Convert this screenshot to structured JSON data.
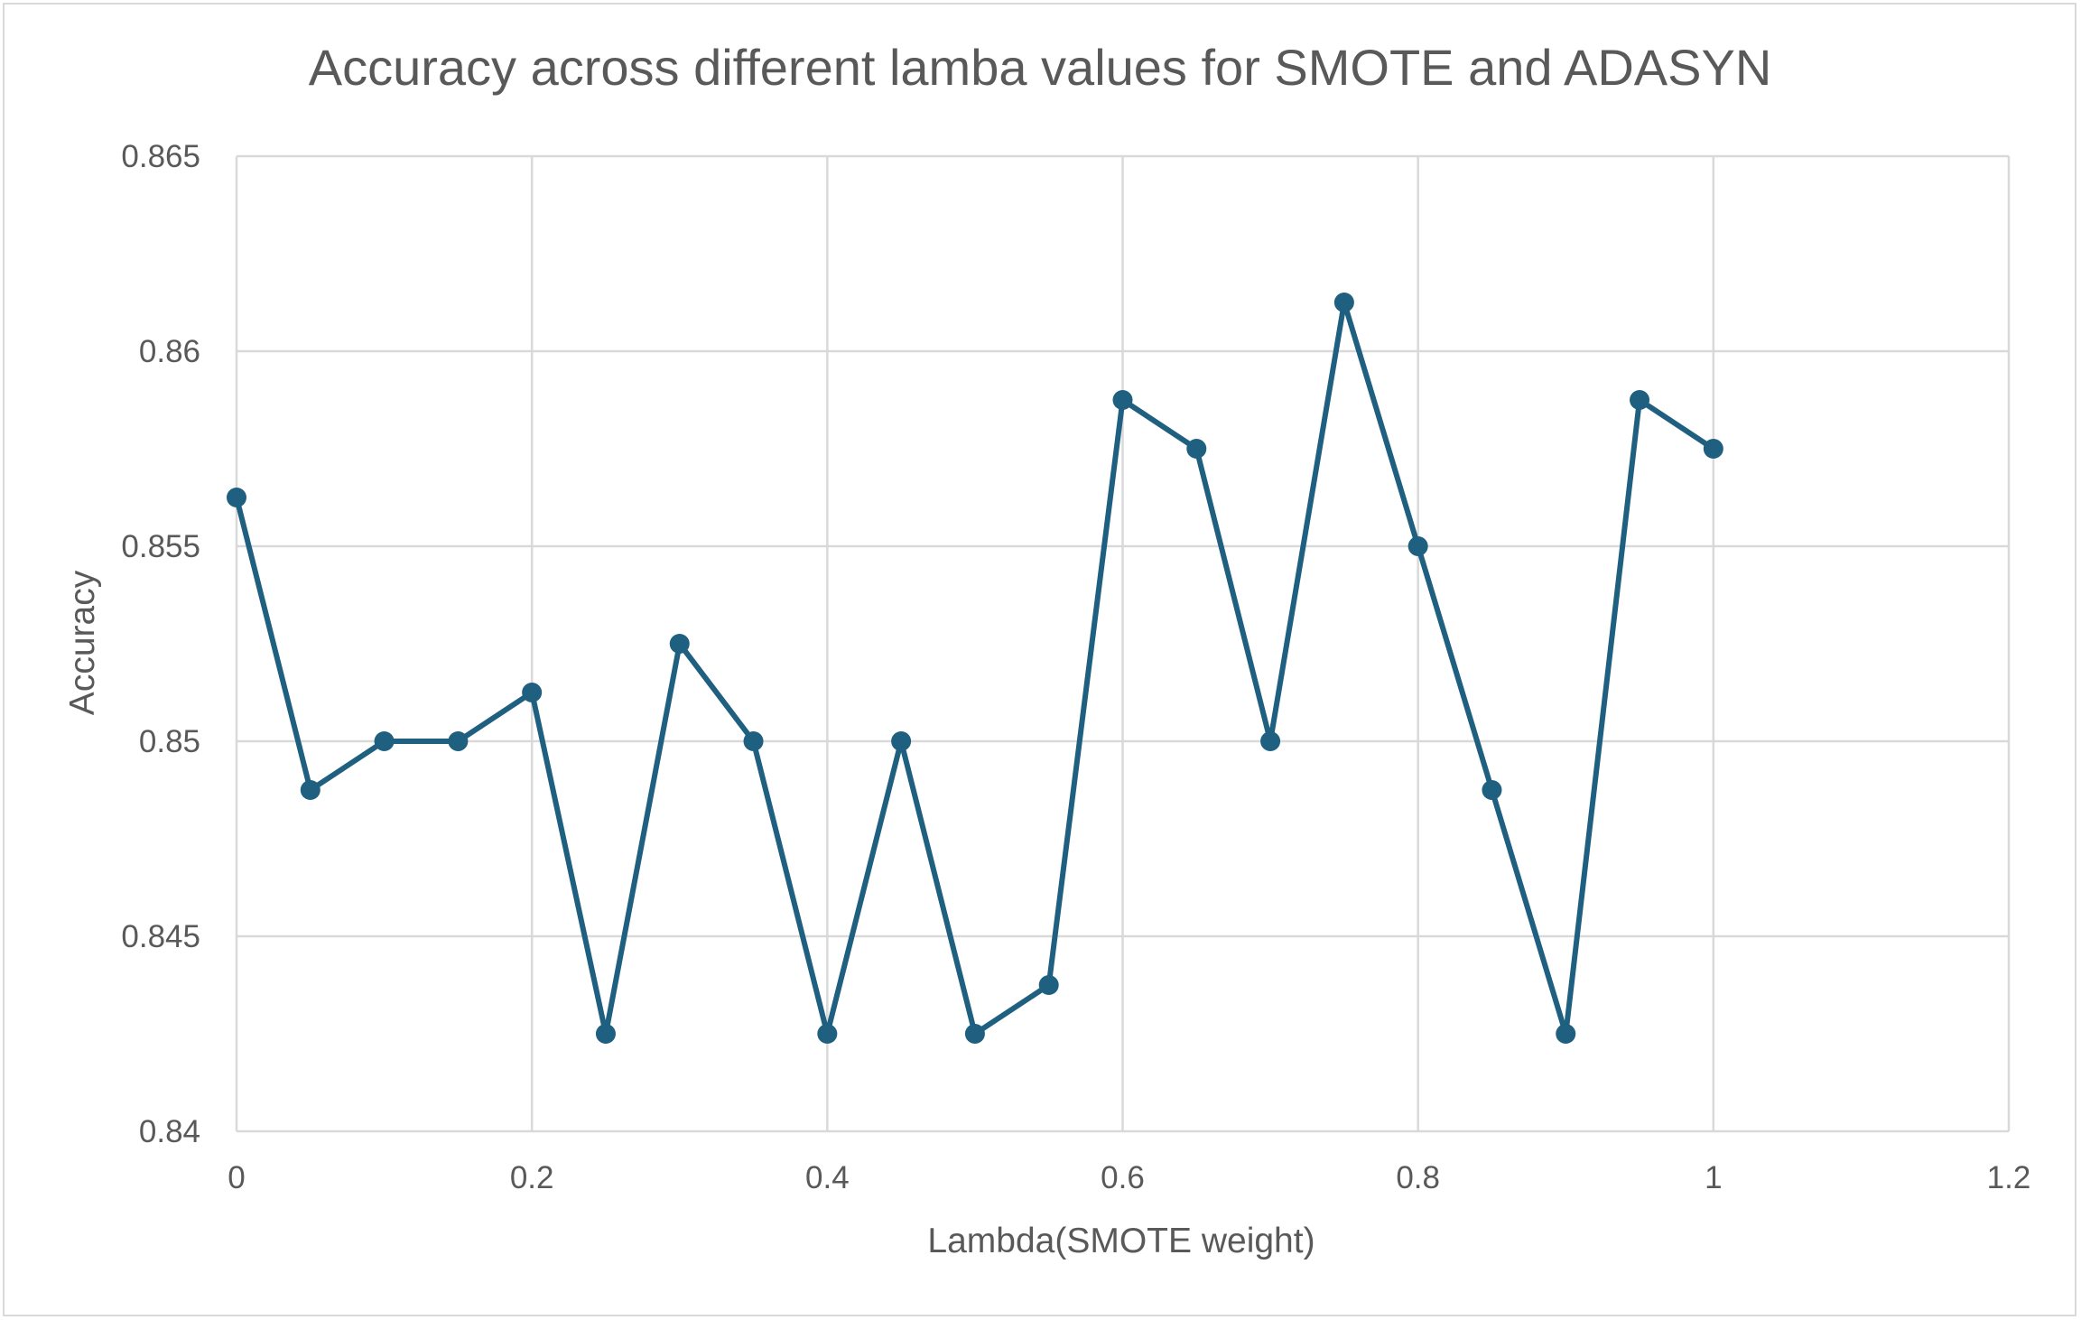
{
  "chart_data": {
    "type": "line",
    "title": "Accuracy across different lamba values for SMOTE and ADASYN",
    "xlabel": "Lambda(SMOTE weight)",
    "ylabel": "Accuracy",
    "xlim": [
      0,
      1.2
    ],
    "ylim": [
      0.84,
      0.865
    ],
    "x_ticks": [
      "0",
      "0.2",
      "0.4",
      "0.6",
      "0.8",
      "1",
      "1.2"
    ],
    "y_ticks": [
      "0.84",
      "0.845",
      "0.85",
      "0.855",
      "0.86",
      "0.865"
    ],
    "grid": true,
    "legend": "none",
    "series": [
      {
        "color": "#1f5f7f",
        "points": [
          {
            "x": 0,
            "y": 0.85625
          },
          {
            "x": 0.05,
            "y": 0.84875
          },
          {
            "x": 0.1,
            "y": 0.85
          },
          {
            "x": 0.15,
            "y": 0.85
          },
          {
            "x": 0.2,
            "y": 0.85125
          },
          {
            "x": 0.25,
            "y": 0.8425
          },
          {
            "x": 0.3,
            "y": 0.8525
          },
          {
            "x": 0.35,
            "y": 0.85
          },
          {
            "x": 0.4,
            "y": 0.8425
          },
          {
            "x": 0.45,
            "y": 0.85
          },
          {
            "x": 0.5,
            "y": 0.8425
          },
          {
            "x": 0.55,
            "y": 0.84375
          },
          {
            "x": 0.6,
            "y": 0.85875
          },
          {
            "x": 0.65,
            "y": 0.8575
          },
          {
            "x": 0.7,
            "y": 0.85
          },
          {
            "x": 0.75,
            "y": 0.86125
          },
          {
            "x": 0.8,
            "y": 0.855
          },
          {
            "x": 0.85,
            "y": 0.84875
          },
          {
            "x": 0.9,
            "y": 0.8425
          },
          {
            "x": 0.95,
            "y": 0.85875
          },
          {
            "x": 1,
            "y": 0.8575
          }
        ]
      }
    ]
  }
}
